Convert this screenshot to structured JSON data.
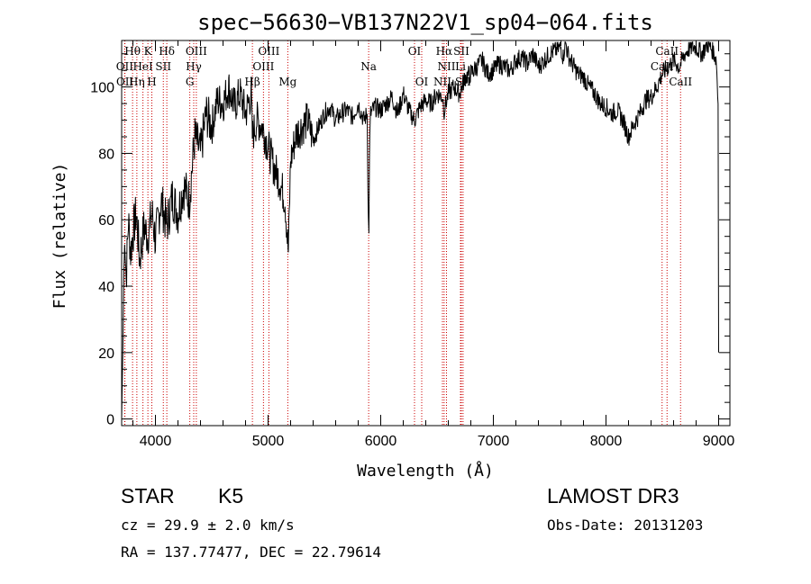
{
  "chart_data": {
    "type": "line",
    "title": "spec−56630−VB137N22V1_sp04−064.fits",
    "xlabel": "Wavelength (Å)",
    "ylabel": "Flux (relative)",
    "xlim": [
      3700,
      9100
    ],
    "ylim": [
      -2,
      114
    ],
    "x_ticks": [
      4000,
      5000,
      6000,
      7000,
      8000,
      9000
    ],
    "y_ticks": [
      0,
      20,
      40,
      60,
      80,
      100
    ],
    "series": [
      {
        "name": "flux",
        "x": [
          3700,
          3710,
          3720,
          3730,
          3740,
          3760,
          3780,
          3800,
          3830,
          3860,
          3900,
          3930,
          3970,
          4000,
          4050,
          4100,
          4150,
          4200,
          4250,
          4300,
          4350,
          4400,
          4450,
          4500,
          4550,
          4600,
          4650,
          4700,
          4750,
          4800,
          4850,
          4860,
          4900,
          4950,
          5000,
          5050,
          5100,
          5150,
          5170,
          5180,
          5200,
          5250,
          5300,
          5350,
          5400,
          5450,
          5500,
          5550,
          5600,
          5650,
          5700,
          5750,
          5800,
          5850,
          5880,
          5890,
          5895,
          5900,
          5910,
          5950,
          6000,
          6050,
          6100,
          6150,
          6200,
          6250,
          6300,
          6350,
          6400,
          6450,
          6500,
          6550,
          6563,
          6600,
          6650,
          6700,
          6750,
          6800,
          6850,
          6900,
          6950,
          7000,
          7050,
          7100,
          7150,
          7200,
          7250,
          7300,
          7350,
          7400,
          7450,
          7500,
          7550,
          7600,
          7620,
          7640,
          7660,
          7700,
          7750,
          7800,
          7850,
          7900,
          7950,
          8000,
          8050,
          8100,
          8150,
          8200,
          8250,
          8300,
          8350,
          8400,
          8450,
          8500,
          8550,
          8600,
          8650,
          8700,
          8750,
          8800,
          8850,
          8900,
          8950,
          8980,
          8995,
          9000
        ],
        "y": [
          0,
          20,
          45,
          55,
          42,
          60,
          50,
          56,
          62,
          48,
          58,
          55,
          62,
          54,
          66,
          58,
          67,
          62,
          70,
          66,
          85,
          80,
          92,
          88,
          96,
          95,
          100,
          94,
          98,
          92,
          98,
          85,
          90,
          88,
          82,
          76,
          72,
          66,
          55,
          50,
          78,
          86,
          88,
          90,
          84,
          88,
          92,
          94,
          90,
          92,
          93,
          91,
          95,
          90,
          92,
          60,
          55,
          80,
          92,
          94,
          93,
          95,
          97,
          92,
          98,
          93,
          90,
          94,
          96,
          95,
          98,
          97,
          93,
          98,
          100,
          98,
          103,
          104,
          106,
          108,
          104,
          105,
          107,
          106,
          105,
          108,
          109,
          107,
          110,
          106,
          108,
          110,
          111,
          112,
          109,
          114,
          110,
          107,
          104,
          103,
          100,
          98,
          95,
          94,
          92,
          93,
          90,
          85,
          89,
          92,
          96,
          97,
          100,
          104,
          106,
          108,
          106,
          110,
          112,
          112,
          110,
          113,
          111,
          108,
          95,
          20
        ],
        "color": "#000000"
      }
    ],
    "spectral_lines": [
      {
        "label": "Hθ",
        "x": 3797,
        "row": 0
      },
      {
        "label": "K",
        "x": 3933,
        "row": 0
      },
      {
        "label": "Hδ",
        "x": 4101,
        "row": 0
      },
      {
        "label": "OIII",
        "x": 4363,
        "row": 0
      },
      {
        "label": "OIII",
        "x": 5007,
        "row": 0
      },
      {
        "label": "OI",
        "x": 6300,
        "row": 0
      },
      {
        "label": "Hα",
        "x": 6563,
        "row": 0
      },
      {
        "label": "SII",
        "x": 6716,
        "row": 0
      },
      {
        "label": "CaII",
        "x": 8542,
        "row": 0
      },
      {
        "label": "OII",
        "x": 3727,
        "row": 1
      },
      {
        "label": "HeI",
        "x": 3889,
        "row": 1
      },
      {
        "label": "SII",
        "x": 4070,
        "row": 1
      },
      {
        "label": "Hγ",
        "x": 4340,
        "row": 1
      },
      {
        "label": "OIII",
        "x": 4959,
        "row": 1
      },
      {
        "label": "Na",
        "x": 5893,
        "row": 1
      },
      {
        "label": "NII",
        "x": 6584,
        "row": 1
      },
      {
        "label": "Li",
        "x": 6708,
        "row": 1
      },
      {
        "label": "CaII",
        "x": 8498,
        "row": 1
      },
      {
        "label": "OII",
        "x": 3729,
        "row": 2
      },
      {
        "label": "Hη",
        "x": 3835,
        "row": 2
      },
      {
        "label": "H",
        "x": 3968,
        "row": 2
      },
      {
        "label": "G",
        "x": 4305,
        "row": 2
      },
      {
        "label": "Hβ",
        "x": 4861,
        "row": 2
      },
      {
        "label": "Mg",
        "x": 5175,
        "row": 2
      },
      {
        "label": "OI",
        "x": 6364,
        "row": 2
      },
      {
        "label": "NII",
        "x": 6548,
        "row": 2
      },
      {
        "label": "SII",
        "x": 6731,
        "row": 2
      },
      {
        "label": "CaII",
        "x": 8662,
        "row": 2
      }
    ]
  },
  "info": {
    "object_class": "STAR",
    "subclass": "K5",
    "survey": "LAMOST DR3",
    "redshift": "cz = 29.9 ± 2.0 km/s",
    "obs_date": "Obs-Date: 20131203",
    "coordinates": "RA = 137.77477, DEC =  22.79614"
  },
  "colors": {
    "spectrum": "#000000",
    "line_marker": "#cc0000",
    "axes": "#000000"
  }
}
